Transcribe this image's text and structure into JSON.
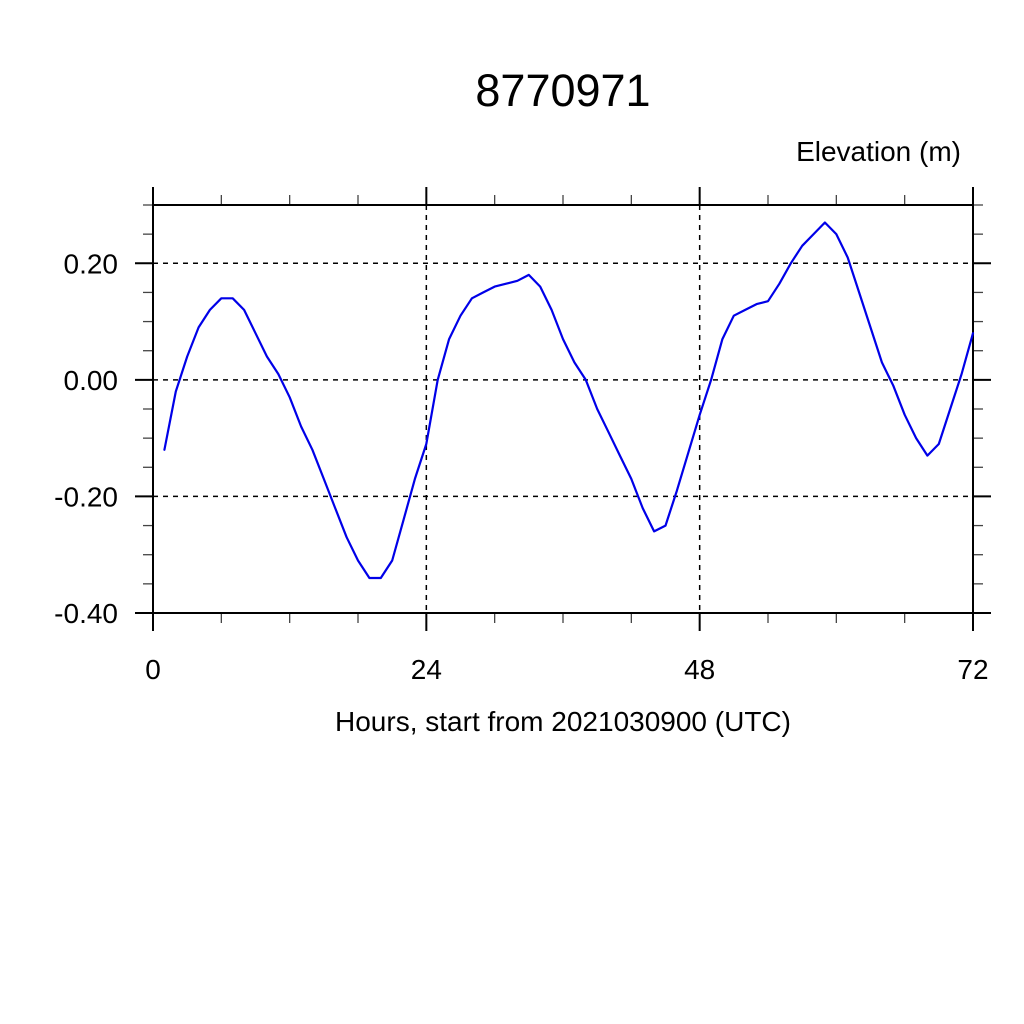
{
  "chart_data": {
    "type": "line",
    "title": "8770971",
    "ylabel": "Elevation (m)",
    "xlabel": "Hours, start from 2021030900 (UTC)",
    "xlim": [
      0,
      72
    ],
    "ylim": [
      -0.4,
      0.3
    ],
    "x_major_ticks": [
      0,
      24,
      48,
      72
    ],
    "x_tick_labels": [
      "0",
      "24",
      "48",
      "72"
    ],
    "x_minor_tick_step": 6,
    "y_major_ticks": [
      -0.4,
      -0.2,
      0.0,
      0.2
    ],
    "y_tick_labels": [
      "-0.40",
      "-0.20",
      "0.00",
      "0.20"
    ],
    "y_minor_tick_step": 0.05,
    "grid": {
      "style": "dashed",
      "at_major_ticks": true,
      "color": "#000000"
    },
    "legend_position": "none",
    "line_color": "#0000e8",
    "frame_color": "#000000",
    "series": [
      {
        "name": "elevation",
        "x": [
          1,
          2,
          3,
          4,
          5,
          6,
          7,
          8,
          9,
          10,
          11,
          12,
          13,
          14,
          15,
          16,
          17,
          18,
          19,
          20,
          21,
          22,
          23,
          24,
          25,
          26,
          27,
          28,
          29,
          30,
          31,
          32,
          33,
          34,
          35,
          36,
          37,
          38,
          39,
          40,
          41,
          42,
          43,
          44,
          45,
          46,
          47,
          48,
          49,
          50,
          51,
          52,
          53,
          54,
          55,
          56,
          57,
          58,
          59,
          60,
          61,
          62,
          63,
          64,
          65,
          66,
          67,
          68,
          69,
          70,
          71,
          72
        ],
        "y": [
          -0.12,
          -0.02,
          0.04,
          0.09,
          0.12,
          0.14,
          0.14,
          0.12,
          0.08,
          0.04,
          0.01,
          -0.03,
          -0.08,
          -0.12,
          -0.17,
          -0.22,
          -0.27,
          -0.31,
          -0.34,
          -0.34,
          -0.31,
          -0.24,
          -0.17,
          -0.11,
          0.0,
          0.07,
          0.11,
          0.14,
          0.15,
          0.16,
          0.165,
          0.17,
          0.18,
          0.16,
          0.12,
          0.07,
          0.03,
          0.0,
          -0.05,
          -0.09,
          -0.13,
          -0.17,
          -0.22,
          -0.26,
          -0.25,
          -0.19,
          -0.125,
          -0.06,
          0.0,
          0.07,
          0.11,
          0.12,
          0.13,
          0.135,
          0.165,
          0.2,
          0.23,
          0.25,
          0.27,
          0.25,
          0.21,
          0.15,
          0.09,
          0.03,
          -0.01,
          -0.06,
          -0.1,
          -0.13,
          -0.11,
          -0.05,
          0.01,
          0.08
        ]
      }
    ]
  }
}
